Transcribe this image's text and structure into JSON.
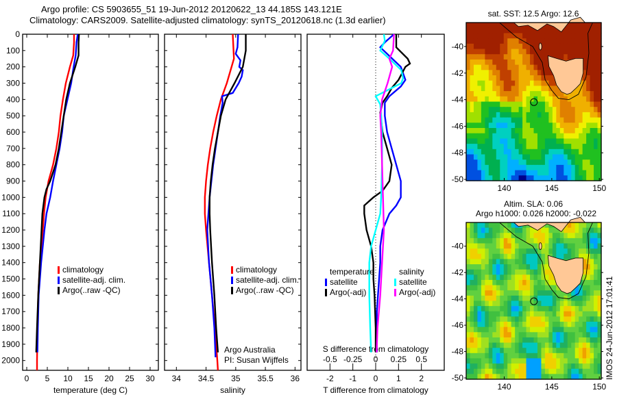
{
  "header": {
    "title_line1": "Argo profile: CS 5903655_51 19-Jun-2012 20120622_13 44.185S 143.121E",
    "title_line2": "Climatology: CARS2009. Satellite-adjusted climatology: synTS_20120618.nc (1.3d earlier)"
  },
  "stamp": "IMOS 24-Jun-2012 17:01:41",
  "chart_data": [
    {
      "type": "line",
      "id": "temperature",
      "xlabel": "temperature (deg C)",
      "ylabel": "",
      "xlim": [
        -1,
        32
      ],
      "ylim": [
        2060,
        0
      ],
      "xticks": [
        0,
        5,
        10,
        15,
        20,
        25,
        30
      ],
      "yticks": [
        0,
        100,
        200,
        300,
        400,
        500,
        600,
        700,
        800,
        900,
        1000,
        1100,
        1200,
        1300,
        1400,
        1500,
        1600,
        1700,
        1800,
        1900,
        2000
      ],
      "legend": [
        "climatology",
        "satellite-adj. clim.",
        "Argo(..raw -QC)"
      ],
      "legend_placement": "lower-middle",
      "series": [
        {
          "name": "climatology",
          "color": "#ff0000",
          "depth": [
            0,
            50,
            130,
            200,
            300,
            400,
            500,
            600,
            700,
            800,
            900,
            1000,
            1100,
            1200,
            1300,
            1400,
            1500,
            1600,
            1800,
            2000,
            2060
          ],
          "values": [
            11.5,
            11.5,
            11.3,
            10.5,
            9.5,
            8.8,
            8.2,
            7.8,
            7.2,
            6.4,
            5.3,
            4.6,
            4.2,
            3.9,
            3.6,
            3.2,
            3.0,
            2.8,
            2.6,
            2.5,
            2.5
          ]
        },
        {
          "name": "satellite-adj. clim.",
          "color": "#0000ff",
          "depth": [
            0,
            50,
            130,
            200,
            300,
            400,
            500,
            600,
            700,
            800,
            900,
            1000,
            1100,
            1200,
            1300,
            1400,
            1500,
            1600,
            1800,
            1950
          ],
          "values": [
            12.4,
            12.1,
            11.9,
            11.4,
            10.8,
            9.9,
            9.0,
            8.6,
            8.0,
            7.2,
            6.4,
            5.7,
            4.8,
            4.3,
            3.9,
            3.5,
            3.2,
            2.9,
            2.7,
            2.6
          ]
        },
        {
          "name": "Argo(..raw -QC)",
          "color": "#000000",
          "depth": [
            0,
            50,
            130,
            200,
            300,
            400,
            500,
            600,
            700,
            800,
            900,
            950,
            1000,
            1100,
            1200,
            1300,
            1400,
            1500,
            1600,
            1800,
            1950
          ],
          "values": [
            12.7,
            12.6,
            12.6,
            11.8,
            10.5,
            9.6,
            9.0,
            8.4,
            7.8,
            7.0,
            5.7,
            4.8,
            4.3,
            3.8,
            3.6,
            3.4,
            3.2,
            3.0,
            2.8,
            2.5,
            2.3
          ]
        }
      ]
    },
    {
      "type": "line",
      "id": "salinity",
      "xlabel": "salinity",
      "xlim": [
        33.8,
        36.1
      ],
      "ylim": [
        2060,
        0
      ],
      "xticks": [
        34,
        34.5,
        35,
        35.5,
        36
      ],
      "legend": [
        "climatology",
        "satellite-adj. clim.",
        "Argo(..raw -QC)"
      ],
      "legend_placement": "lower-right",
      "annotation": [
        "Argo Australia",
        "PI: Susan Wijffels"
      ],
      "series": [
        {
          "name": "climatology",
          "color": "#ff0000",
          "depth": [
            0,
            150,
            200,
            300,
            400,
            500,
            600,
            700,
            800,
            900,
            1000,
            1100,
            1200,
            1400,
            1600,
            1800,
            2000,
            2060
          ],
          "values": [
            34.95,
            34.97,
            34.93,
            34.85,
            34.75,
            34.68,
            34.62,
            34.57,
            34.53,
            34.5,
            34.48,
            34.48,
            34.5,
            34.55,
            34.6,
            34.65,
            34.69,
            34.7
          ]
        },
        {
          "name": "satellite-adj. clim.",
          "color": "#0000ff",
          "depth": [
            0,
            80,
            120,
            160,
            200,
            220,
            260,
            300,
            360,
            380,
            420,
            500,
            600,
            700,
            800,
            900,
            1000,
            1100,
            1200,
            1400,
            1600,
            1800,
            1980
          ],
          "values": [
            35.04,
            35.03,
            35.0,
            35.08,
            35.06,
            35.12,
            35.1,
            35.05,
            34.95,
            34.77,
            34.78,
            34.74,
            34.7,
            34.66,
            34.62,
            34.59,
            34.56,
            34.54,
            34.52,
            34.55,
            34.6,
            34.64,
            34.66
          ]
        },
        {
          "name": "Argo(..raw -QC)",
          "color": "#000000",
          "depth": [
            0,
            100,
            200,
            300,
            400,
            500,
            600,
            700,
            800,
            900,
            1000,
            1100,
            1200,
            1400,
            1600,
            1800,
            1950
          ],
          "values": [
            35.17,
            35.17,
            35.12,
            34.98,
            34.83,
            34.75,
            34.7,
            34.65,
            34.61,
            34.58,
            34.56,
            34.56,
            34.57,
            34.6,
            34.64,
            34.67,
            34.7
          ]
        }
      ]
    },
    {
      "type": "line",
      "id": "difference",
      "xlabel": "T difference from climatology",
      "xlabel_top": "S difference from climatology",
      "xlim": [
        -3,
        3
      ],
      "xticks": [
        -2,
        -1,
        0,
        1,
        2
      ],
      "xlim_top": [
        -0.75,
        0.75
      ],
      "xticks_top": [
        -0.5,
        -0.25,
        0,
        0.25,
        0.5
      ],
      "ylim": [
        2060,
        0
      ],
      "zero_line": "dotted",
      "legend": {
        "temperature_header": "temperature",
        "salinity_header": "salinity",
        "items": [
          "satellite",
          "Argo(-adj)",
          "satellite",
          "Argo(-adj)"
        ]
      },
      "legend_placement": "lower-middle",
      "series": [
        {
          "name": "temperature satellite",
          "color": "#0000ff",
          "units": "deg C",
          "depth": [
            0,
            50,
            80,
            120,
            200,
            280,
            320,
            380,
            420,
            500,
            600,
            700,
            800,
            900,
            1000,
            1050,
            1100,
            1200,
            1300,
            1400,
            1500,
            1600,
            1700,
            1800,
            1950
          ],
          "values": [
            0.8,
            0.4,
            0.2,
            0.5,
            1.1,
            1.3,
            1.1,
            0.6,
            0.4,
            0.4,
            0.5,
            0.7,
            0.9,
            1.1,
            1.1,
            0.9,
            0.6,
            0.3,
            0.2,
            0.2,
            0.15,
            0.1,
            0.05,
            0.05,
            0.05
          ]
        },
        {
          "name": "temperature Argo(-adj)",
          "color": "#000000",
          "units": "deg C",
          "depth": [
            0,
            80,
            150,
            180,
            200,
            280,
            330,
            380,
            420,
            480,
            600,
            700,
            800,
            900,
            960,
            1000,
            1050,
            1100,
            1200,
            1300,
            1400,
            1500,
            1600,
            1800,
            1950
          ],
          "values": [
            0.9,
            0.9,
            1.4,
            1.5,
            1.3,
            1.0,
            0.7,
            0.5,
            0.3,
            0.2,
            0.3,
            0.5,
            0.7,
            0.6,
            0.3,
            -0.1,
            -0.5,
            -0.5,
            -0.4,
            -0.2,
            -0.1,
            -0.1,
            -0.05,
            0.0,
            0.0
          ]
        },
        {
          "name": "salinity satellite",
          "color": "#00ffff",
          "units": "psu",
          "depth": [
            0,
            40,
            100,
            150,
            220,
            270,
            300,
            380,
            430,
            500,
            600,
            800,
            1000,
            1100,
            1200,
            1300,
            1400,
            1500,
            1600,
            1800,
            1950
          ],
          "values": [
            0.09,
            0.1,
            0.05,
            0.15,
            0.28,
            0.3,
            0.28,
            0.0,
            0.05,
            0.06,
            0.07,
            0.07,
            0.06,
            0.05,
            0.0,
            -0.05,
            -0.07,
            -0.07,
            -0.07,
            -0.06,
            -0.05
          ]
        },
        {
          "name": "salinity Argo(-adj)",
          "color": "#ff00ff",
          "units": "psu",
          "depth": [
            0,
            100,
            150,
            200,
            300,
            400,
            500,
            600,
            800,
            1000,
            1200,
            1400,
            1600,
            1800,
            1950
          ],
          "values": [
            0.2,
            0.19,
            0.15,
            0.18,
            0.13,
            0.07,
            0.05,
            0.06,
            0.07,
            0.08,
            0.09,
            0.07,
            0.05,
            0.02,
            0.01
          ]
        }
      ]
    },
    {
      "type": "heatmap",
      "id": "sst-map",
      "title": "sat. SST: 12.5 Argo: 12.6",
      "xlim": [
        136,
        150.2
      ],
      "ylim": [
        -50.1,
        -38.2
      ],
      "xticks": [
        140,
        145,
        150
      ],
      "yticks": [
        -40,
        -42,
        -44,
        -46,
        -48,
        -50
      ],
      "marker": {
        "lon": 143.121,
        "lat": -44.185
      },
      "colormap": [
        "#00008b",
        "#0050e0",
        "#00b0ff",
        "#00d0c0",
        "#00b050",
        "#20c020",
        "#a0e000",
        "#f0f000",
        "#f0b000",
        "#e08000",
        "#c04000",
        "#a02000"
      ]
    },
    {
      "type": "heatmap",
      "id": "sla-map",
      "title": "Altim. SLA: 0.06",
      "subtitle": "Argo h1000: 0.026 h2000: -0.022",
      "xlim": [
        136,
        150.2
      ],
      "ylim": [
        -50.1,
        -38.2
      ],
      "xticks": [
        140,
        145,
        150
      ],
      "yticks": [
        -40,
        -42,
        -44,
        -46,
        -48,
        -50
      ],
      "marker": {
        "lon": 143.121,
        "lat": -44.185
      }
    }
  ],
  "colors": {
    "land": "#ffc896",
    "climatology": "#ff0000",
    "satellite": "#0000ff",
    "argo": "#000000",
    "sal_satellite": "#00ffff",
    "sal_argo": "#ff00ff"
  }
}
